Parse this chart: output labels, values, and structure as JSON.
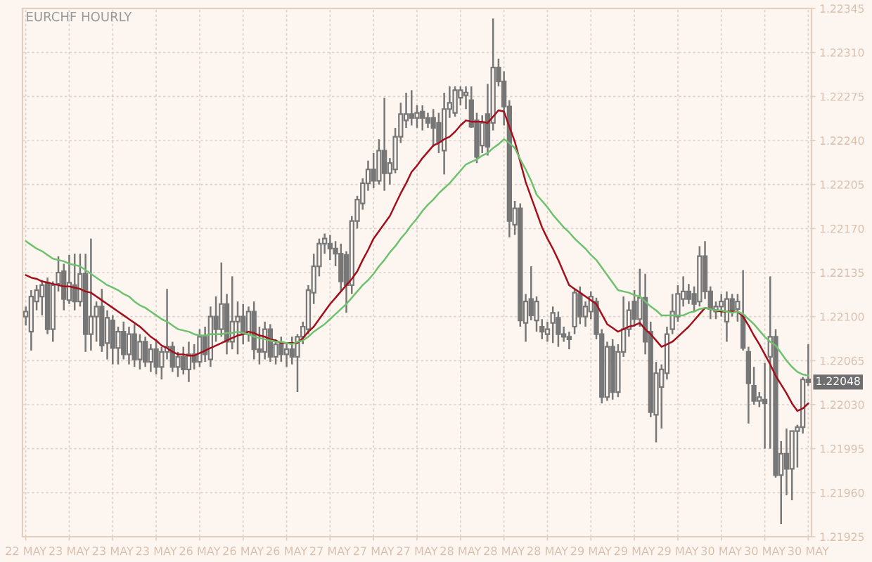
{
  "chart_data": {
    "type": "candlestick",
    "title": "EURCHF HOURLY",
    "categories": [
      "22 MAY",
      null,
      null,
      null,
      null,
      null,
      null,
      null,
      "23 MAY",
      null,
      null,
      null,
      null,
      null,
      null,
      null,
      "23 MAY",
      null,
      null,
      null,
      null,
      null,
      null,
      null,
      "23 MAY",
      null,
      null,
      null,
      null,
      null,
      null,
      null,
      "26 MAY",
      null,
      null,
      null,
      null,
      null,
      null,
      null,
      "26 MAY",
      null,
      null,
      null,
      null,
      null,
      null,
      null,
      "26 MAY",
      null,
      null,
      null,
      null,
      null,
      null,
      null,
      "27 MAY",
      null,
      null,
      null,
      null,
      null,
      null,
      null,
      "27 MAY",
      null,
      null,
      null,
      null,
      null,
      null,
      null,
      "27 MAY",
      null,
      null,
      null,
      null,
      null,
      null,
      null,
      "28 MAY",
      null,
      null,
      null,
      null,
      null,
      null,
      null,
      "28 MAY",
      null,
      null,
      null,
      null,
      null,
      null,
      null,
      "28 MAY",
      null,
      null,
      null,
      null,
      null,
      null,
      null,
      "29 MAY",
      null,
      null,
      null,
      null,
      null,
      null,
      null,
      "29 MAY",
      null,
      null,
      null,
      null,
      null,
      null,
      null,
      "29 MAY",
      null,
      null,
      null,
      null,
      null,
      null,
      null,
      "30 MAY",
      null,
      null,
      null,
      null,
      null,
      null,
      null,
      "30 MAY",
      null,
      null,
      null,
      null,
      null,
      null,
      null,
      "30 MAY"
    ],
    "ohlc": [
      [
        1.221,
        1.22108,
        1.22093,
        1.22104
      ],
      [
        1.22088,
        1.22121,
        1.22073,
        1.22116
      ],
      [
        1.22112,
        1.22125,
        1.22105,
        1.22121
      ],
      [
        1.22116,
        1.22129,
        1.22101,
        1.22125
      ],
      [
        1.22127,
        1.22131,
        1.22086,
        1.2209
      ],
      [
        1.2209,
        1.22128,
        1.2208,
        1.22125
      ],
      [
        1.22126,
        1.22148,
        1.2212,
        1.22135
      ],
      [
        1.22136,
        1.22142,
        1.22105,
        1.22114
      ],
      [
        1.22113,
        1.22149,
        1.2211,
        1.22127
      ],
      [
        1.22125,
        1.2215,
        1.22105,
        1.22112
      ],
      [
        1.22112,
        1.2215,
        1.22108,
        1.22134
      ],
      [
        1.22134,
        1.2215,
        1.22072,
        1.22086
      ],
      [
        1.22086,
        1.22162,
        1.22073,
        1.221
      ],
      [
        1.221,
        1.22112,
        1.2208,
        1.22108
      ],
      [
        1.22108,
        1.22122,
        1.22072,
        1.22077
      ],
      [
        1.22079,
        1.22105,
        1.22066,
        1.22099
      ],
      [
        1.22097,
        1.22101,
        1.22062,
        1.22075
      ],
      [
        1.22075,
        1.22092,
        1.22062,
        1.22088
      ],
      [
        1.22088,
        1.22096,
        1.22066,
        1.2207
      ],
      [
        1.2207,
        1.22092,
        1.22062,
        1.22086
      ],
      [
        1.22086,
        1.22094,
        1.2206,
        1.22066
      ],
      [
        1.22066,
        1.22086,
        1.22058,
        1.2208
      ],
      [
        1.2208,
        1.22084,
        1.2206,
        1.22064
      ],
      [
        1.22064,
        1.22078,
        1.22056,
        1.22074
      ],
      [
        1.22074,
        1.22082,
        1.22054,
        1.2206
      ],
      [
        1.2206,
        1.22076,
        1.2205,
        1.22072
      ],
      [
        1.22072,
        1.22122,
        1.22066,
        1.22076
      ],
      [
        1.22076,
        1.2208,
        1.22056,
        1.2206
      ],
      [
        1.2206,
        1.22072,
        1.22052,
        1.22068
      ],
      [
        1.22068,
        1.22076,
        1.22054,
        1.22058
      ],
      [
        1.22058,
        1.2208,
        1.22048,
        1.2207
      ],
      [
        1.2207,
        1.22078,
        1.22058,
        1.22064
      ],
      [
        1.22064,
        1.2209,
        1.2206,
        1.22084
      ],
      [
        1.22084,
        1.22092,
        1.22064,
        1.2207
      ],
      [
        1.22066,
        1.22108,
        1.2206,
        1.221
      ],
      [
        1.221,
        1.22116,
        1.2208,
        1.2209
      ],
      [
        1.2209,
        1.22143,
        1.22084,
        1.2211
      ],
      [
        1.2211,
        1.22118,
        1.2207,
        1.2208
      ],
      [
        1.2208,
        1.22132,
        1.22074,
        1.22096
      ],
      [
        1.22096,
        1.22112,
        1.2207,
        1.221
      ],
      [
        1.221,
        1.2211,
        1.22078,
        1.22086
      ],
      [
        1.22086,
        1.22108,
        1.2208,
        1.22104
      ],
      [
        1.22104,
        1.22112,
        1.22066,
        1.22074
      ],
      [
        1.22074,
        1.22092,
        1.22062,
        1.22072
      ],
      [
        1.22072,
        1.22096,
        1.22066,
        1.2209
      ],
      [
        1.2209,
        1.22094,
        1.22064,
        1.22068
      ],
      [
        1.22068,
        1.22082,
        1.22062,
        1.22078
      ],
      [
        1.22078,
        1.22084,
        1.22064,
        1.2207
      ],
      [
        1.2207,
        1.22078,
        1.2206,
        1.22074
      ],
      [
        1.22074,
        1.22084,
        1.22062,
        1.22068
      ],
      [
        1.22068,
        1.22086,
        1.2204,
        1.22084
      ],
      [
        1.22084,
        1.22096,
        1.22078,
        1.22092
      ],
      [
        1.2209,
        1.22125,
        1.22086,
        1.22121
      ],
      [
        1.22119,
        1.2215,
        1.2211,
        1.2214
      ],
      [
        1.2214,
        1.22162,
        1.22132,
        1.22158
      ],
      [
        1.22158,
        1.22166,
        1.2215,
        1.22162
      ],
      [
        1.22158,
        1.22165,
        1.22145,
        1.22154
      ],
      [
        1.22154,
        1.2216,
        1.2214,
        1.2215
      ],
      [
        1.2215,
        1.22158,
        1.2212,
        1.22128
      ],
      [
        1.22149,
        1.22152,
        1.22103,
        1.22125
      ],
      [
        1.22125,
        1.2218,
        1.22118,
        1.22176
      ],
      [
        1.22176,
        1.22196,
        1.2217,
        1.22193
      ],
      [
        1.2219,
        1.2221,
        1.22185,
        1.22206
      ],
      [
        1.22206,
        1.22224,
        1.222,
        1.22217
      ],
      [
        1.22217,
        1.2223,
        1.22202,
        1.22208
      ],
      [
        1.22208,
        1.22241,
        1.22205,
        1.22232
      ],
      [
        1.22232,
        1.22274,
        1.222,
        1.22214
      ],
      [
        1.22214,
        1.22226,
        1.22205,
        1.22222
      ],
      [
        1.22217,
        1.2225,
        1.22214,
        1.22243
      ],
      [
        1.22243,
        1.2227,
        1.22238,
        1.22261
      ],
      [
        1.22256,
        1.22278,
        1.2225,
        1.22261
      ],
      [
        1.22261,
        1.2228,
        1.22252,
        1.22258
      ],
      [
        1.22258,
        1.22268,
        1.2225,
        1.22262
      ],
      [
        1.22263,
        1.22268,
        1.22248,
        1.22258
      ],
      [
        1.22258,
        1.22262,
        1.2225,
        1.22254
      ],
      [
        1.22258,
        1.22265,
        1.22235,
        1.2225
      ],
      [
        1.22254,
        1.22262,
        1.2223,
        1.22239
      ],
      [
        1.22232,
        1.22278,
        1.22213,
        1.22265
      ],
      [
        1.22265,
        1.22283,
        1.22258,
        1.2227
      ],
      [
        1.22262,
        1.22283,
        1.22259,
        1.2228
      ],
      [
        1.22274,
        1.22283,
        1.22268,
        1.2228
      ],
      [
        1.22276,
        1.22283,
        1.22265,
        1.22278
      ],
      [
        1.22272,
        1.22283,
        1.2225,
        1.22251
      ],
      [
        1.22256,
        1.22262,
        1.22222,
        1.22227
      ],
      [
        1.22236,
        1.2226,
        1.2223,
        1.22254
      ],
      [
        1.22261,
        1.22285,
        1.22228,
        1.22235
      ],
      [
        1.22254,
        1.22337,
        1.22248,
        1.22298
      ],
      [
        1.22298,
        1.22305,
        1.22283,
        1.22287
      ],
      [
        1.22287,
        1.22295,
        1.22252,
        1.22267
      ],
      [
        1.22267,
        1.22272,
        1.22163,
        1.22176
      ],
      [
        1.22173,
        1.22192,
        1.22165,
        1.22186
      ],
      [
        1.22186,
        1.2219,
        1.22092,
        1.22097
      ],
      [
        1.22095,
        1.22118,
        1.2208,
        1.22112
      ],
      [
        1.22114,
        1.2214,
        1.22097,
        1.22101
      ],
      [
        1.22097,
        1.22116,
        1.22088,
        1.22112
      ],
      [
        1.22092,
        1.22098,
        1.22082,
        1.22088
      ],
      [
        1.22086,
        1.22096,
        1.2208,
        1.2209
      ],
      [
        1.22095,
        1.22108,
        1.22079,
        1.22103
      ],
      [
        1.22099,
        1.22104,
        1.22076,
        1.22086
      ],
      [
        1.22086,
        1.22092,
        1.2208,
        1.22084
      ],
      [
        1.22084,
        1.22088,
        1.22074,
        1.22082
      ],
      [
        1.22092,
        1.22122,
        1.22086,
        1.22119
      ],
      [
        1.22118,
        1.22124,
        1.22094,
        1.221
      ],
      [
        1.221,
        1.22112,
        1.22092,
        1.22108
      ],
      [
        1.22104,
        1.2212,
        1.22098,
        1.22116
      ],
      [
        1.22112,
        1.22115,
        1.22082,
        1.22086
      ],
      [
        1.22086,
        1.2209,
        1.22031,
        1.22036
      ],
      [
        1.22036,
        1.2208,
        1.22033,
        1.22076
      ],
      [
        1.22076,
        1.22082,
        1.22034,
        1.2204
      ],
      [
        1.2204,
        1.22078,
        1.22036,
        1.22072
      ],
      [
        1.22072,
        1.22116,
        1.22068,
        1.2209
      ],
      [
        1.2209,
        1.22112,
        1.22084,
        1.22105
      ],
      [
        1.22112,
        1.22121,
        1.22092,
        1.22098
      ],
      [
        1.22098,
        1.22138,
        1.22092,
        1.22115
      ],
      [
        1.22115,
        1.22134,
        1.2207,
        1.2208
      ],
      [
        1.22088,
        1.22096,
        1.2202,
        1.22024
      ],
      [
        1.22022,
        1.22064,
        1.22,
        1.22055
      ],
      [
        1.22044,
        1.22062,
        1.22011,
        1.22058
      ],
      [
        1.22055,
        1.22092,
        1.2205,
        1.22086
      ],
      [
        1.2209,
        1.22118,
        1.22086,
        1.22104
      ],
      [
        1.221,
        1.22125,
        1.22096,
        1.22118
      ],
      [
        1.22114,
        1.22132,
        1.22108,
        1.2212
      ],
      [
        1.2212,
        1.22126,
        1.2211,
        1.22114
      ],
      [
        1.22118,
        1.22124,
        1.22104,
        1.2211
      ],
      [
        1.22112,
        1.22156,
        1.22108,
        1.22148
      ],
      [
        1.22148,
        1.2216,
        1.22114,
        1.2212
      ],
      [
        1.2212,
        1.22124,
        1.22098,
        1.22106
      ],
      [
        1.22104,
        1.22112,
        1.22098,
        1.22108
      ],
      [
        1.22108,
        1.22118,
        1.221,
        1.22112
      ],
      [
        1.22096,
        1.2212,
        1.2208,
        1.22114
      ],
      [
        1.22114,
        1.22118,
        1.221,
        1.22105
      ],
      [
        1.22106,
        1.22118,
        1.22096,
        1.22112
      ],
      [
        1.22101,
        1.22137,
        1.22073,
        1.22075
      ],
      [
        1.22072,
        1.22076,
        1.22015,
        1.22047
      ],
      [
        1.22045,
        1.2206,
        1.2203,
        1.22033
      ],
      [
        1.22033,
        1.2204,
        1.22028,
        1.22036
      ],
      [
        1.22034,
        1.22063,
        1.21995,
        1.22031
      ],
      [
        1.22068,
        1.22132,
        1.21995,
        1.22084
      ],
      [
        1.22084,
        1.2209,
        1.21972,
        1.21974
      ],
      [
        1.21974,
        1.22001,
        1.21935,
        1.21991
      ],
      [
        1.21991,
        1.22011,
        1.21958,
        1.21979
      ],
      [
        1.21979,
        1.22009,
        1.21954,
        1.22009
      ],
      [
        1.22009,
        1.22014,
        1.2198,
        1.22012
      ],
      [
        1.22012,
        1.22052,
        1.22007,
        1.2205
      ],
      [
        1.2205,
        1.22078,
        1.22045,
        1.22048
      ]
    ],
    "color": "#777777",
    "series": [
      {
        "type": "line",
        "color": "#a3101c",
        "values": [
          1.22133,
          1.22131,
          1.2213,
          1.22128,
          1.22127,
          1.22126,
          1.22125,
          1.22124,
          1.22124,
          1.22123,
          1.22122,
          1.2212,
          1.22119,
          1.22116,
          1.22113,
          1.2211,
          1.22107,
          1.22104,
          1.22101,
          1.22098,
          1.22095,
          1.22092,
          1.22088,
          1.22084,
          1.22081,
          1.22077,
          1.22075,
          1.22072,
          1.2207,
          1.2207,
          1.22069,
          1.22069,
          1.22071,
          1.22073,
          1.22075,
          1.22077,
          1.22079,
          1.22081,
          1.22083,
          1.22085,
          1.22086,
          1.22088,
          1.22087,
          1.22085,
          1.22084,
          1.22082,
          1.22081,
          1.22079,
          1.22079,
          1.22079,
          1.22079,
          1.22083,
          1.22088,
          1.22092,
          1.22098,
          1.22104,
          1.2211,
          1.22115,
          1.2212,
          1.22125,
          1.2213,
          1.22136,
          1.22145,
          1.22153,
          1.22162,
          1.22168,
          1.22174,
          1.2218,
          1.22189,
          1.22198,
          1.22206,
          1.22215,
          1.2222,
          1.22226,
          1.22231,
          1.22236,
          1.22238,
          1.22241,
          1.22243,
          1.22247,
          1.22252,
          1.22256,
          1.22255,
          1.22255,
          1.22255,
          1.22254,
          1.22259,
          1.22264,
          1.22263,
          1.22251,
          1.22239,
          1.22223,
          1.22207,
          1.22195,
          1.22183,
          1.22171,
          1.22162,
          1.22154,
          1.22145,
          1.22135,
          1.22125,
          1.22122,
          1.22119,
          1.22116,
          1.22113,
          1.2211,
          1.22102,
          1.22094,
          1.22091,
          1.22088,
          1.2209,
          1.22092,
          1.22093,
          1.22095,
          1.2209,
          1.22086,
          1.22081,
          1.22076,
          1.22078,
          1.2208,
          1.22084,
          1.22088,
          1.22092,
          1.22097,
          1.22102,
          1.22107,
          1.22106,
          1.22105,
          1.22104,
          1.22104,
          1.22104,
          1.22104,
          1.221,
          1.22093,
          1.22085,
          1.22078,
          1.2207,
          1.22062,
          1.22053,
          1.22046,
          1.22039,
          1.22031,
          1.22025,
          1.22027,
          1.22031
        ]
      },
      {
        "type": "line",
        "color": "#6fc06f",
        "values": [
          1.2216,
          1.22157,
          1.22154,
          1.22152,
          1.22149,
          1.22146,
          1.22145,
          1.22144,
          1.22142,
          1.22141,
          1.2214,
          1.22137,
          1.22134,
          1.22131,
          1.22128,
          1.22125,
          1.22123,
          1.22121,
          1.22118,
          1.22116,
          1.22112,
          1.22109,
          1.22107,
          1.22104,
          1.22101,
          1.22098,
          1.22096,
          1.22093,
          1.2209,
          1.22089,
          1.22088,
          1.22086,
          1.22085,
          1.22085,
          1.22086,
          1.22086,
          1.22086,
          1.22087,
          1.22087,
          1.22088,
          1.22087,
          1.22086,
          1.22084,
          1.22083,
          1.22082,
          1.22081,
          1.2208,
          1.2208,
          1.22079,
          1.22078,
          1.2208,
          1.22081,
          1.22084,
          1.22088,
          1.22091,
          1.22094,
          1.22098,
          1.22102,
          1.22106,
          1.2211,
          1.22115,
          1.2212,
          1.22125,
          1.22129,
          1.22134,
          1.2214,
          1.22145,
          1.22151,
          1.22156,
          1.22162,
          1.22167,
          1.22173,
          1.22178,
          1.22184,
          1.22189,
          1.22193,
          1.22198,
          1.22202,
          1.22206,
          1.22211,
          1.22216,
          1.22221,
          1.22223,
          1.22225,
          1.22228,
          1.2223,
          1.22234,
          1.22237,
          1.22241,
          1.22238,
          1.22234,
          1.22225,
          1.22217,
          1.22208,
          1.22197,
          1.22192,
          1.22187,
          1.22181,
          1.22176,
          1.22171,
          1.22167,
          1.22162,
          1.22158,
          1.22154,
          1.22149,
          1.22145,
          1.22139,
          1.22133,
          1.22127,
          1.22121,
          1.2212,
          1.22119,
          1.22117,
          1.22116,
          1.22112,
          1.22108,
          1.22105,
          1.22101,
          1.22101,
          1.22101,
          1.22101,
          1.22101,
          1.22103,
          1.22104,
          1.22106,
          1.22107,
          1.22106,
          1.22105,
          1.22105,
          1.22104,
          1.22103,
          1.22104,
          1.22102,
          1.22098,
          1.22094,
          1.22089,
          1.22084,
          1.2208,
          1.22077,
          1.22071,
          1.22065,
          1.2206,
          1.22056,
          1.22054,
          1.22053
        ]
      }
    ],
    "ylim": [
      1.21925,
      1.22345
    ],
    "yticks": [
      1.21925,
      {
        "value": 1.2196,
        "label": "1.21960"
      },
      1.21995,
      {
        "value": 1.2203,
        "label": "1.22030"
      },
      1.22065,
      {
        "value": 1.221,
        "label": "1.22100"
      },
      1.22135,
      {
        "value": 1.2217,
        "label": "1.22170"
      },
      1.22205,
      {
        "value": 1.2224,
        "label": "1.22240"
      },
      1.22275,
      {
        "value": 1.2231,
        "label": "1.22310"
      },
      1.22345
    ],
    "grid": true,
    "annotations": [
      {
        "text": "1.22048",
        "y": 1.22048
      }
    ]
  }
}
